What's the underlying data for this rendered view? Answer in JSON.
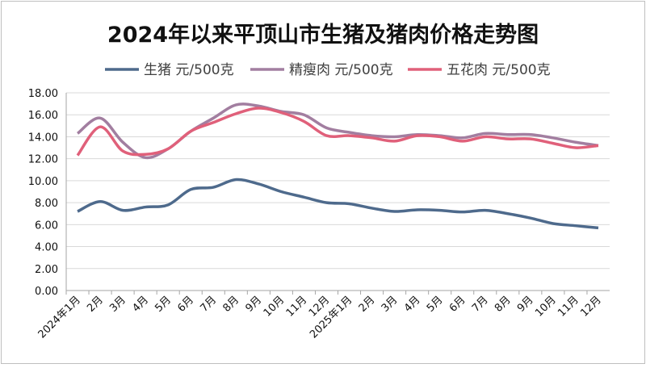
{
  "chart_data": {
    "type": "line",
    "title": "2024年以来平顶山市生猪及猪肉价格走势图",
    "categories": [
      "2024年1月",
      "2月",
      "3月",
      "4月",
      "5月",
      "6月",
      "7月",
      "8月",
      "9月",
      "10月",
      "11月",
      "12月",
      "2025年1月",
      "2月",
      "3月",
      "4月",
      "5月",
      "6月",
      "7月",
      "8月",
      "9月",
      "10月",
      "11月",
      "12月"
    ],
    "series": [
      {
        "name": "生猪 元/500克",
        "color": "#4e6a8c",
        "values": [
          7.2,
          8.1,
          7.3,
          7.6,
          7.8,
          9.2,
          9.4,
          10.1,
          9.7,
          9.0,
          8.5,
          8.0,
          7.9,
          7.5,
          7.2,
          7.35,
          7.3,
          7.15,
          7.3,
          7.0,
          6.6,
          6.1,
          5.9,
          5.7
        ]
      },
      {
        "name": "精瘦肉 元/500克",
        "color": "#a27ea0",
        "values": [
          14.3,
          15.7,
          13.5,
          12.1,
          12.9,
          14.5,
          15.7,
          16.9,
          16.8,
          16.3,
          16.0,
          14.8,
          14.4,
          14.1,
          14.0,
          14.2,
          14.1,
          13.9,
          14.3,
          14.2,
          14.2,
          13.9,
          13.5,
          13.2
        ]
      },
      {
        "name": "五花肉 元/500克",
        "color": "#e0607a",
        "values": [
          12.3,
          14.9,
          12.7,
          12.4,
          12.9,
          14.5,
          15.3,
          16.1,
          16.6,
          16.2,
          15.4,
          14.1,
          14.1,
          13.9,
          13.6,
          14.1,
          14.0,
          13.6,
          14.0,
          13.8,
          13.8,
          13.4,
          13.0,
          13.2
        ]
      }
    ],
    "ylim": [
      0,
      18
    ],
    "yticks": [
      {
        "value": 0,
        "label": "0.00"
      },
      {
        "value": 2,
        "label": "2.00"
      },
      {
        "value": 4,
        "label": "4.00"
      },
      {
        "value": 6,
        "label": "6.00"
      },
      {
        "value": 8,
        "label": "8.00"
      },
      {
        "value": 10,
        "label": "10.00"
      },
      {
        "value": 12,
        "label": "12.00"
      },
      {
        "value": 14,
        "label": "14.00"
      },
      {
        "value": 16,
        "label": "16.00"
      },
      {
        "value": 18,
        "label": "18.00"
      }
    ],
    "grid": true,
    "legend": "top"
  }
}
